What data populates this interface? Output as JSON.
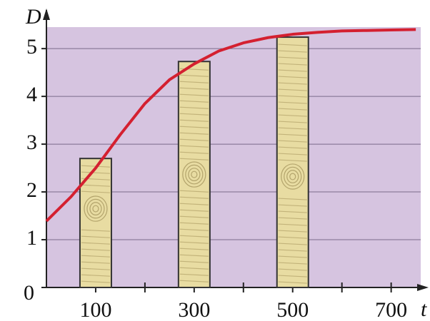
{
  "chart_data": {
    "type": "bar",
    "x_label": "t",
    "y_label": "D",
    "x": [
      100,
      300,
      500
    ],
    "values": [
      2.7,
      4.73,
      5.24
    ],
    "color": "#e8dca2",
    "background": "#d6c4e0",
    "xlim": [
      0,
      760
    ],
    "ylim": [
      0,
      5.45
    ],
    "xticks": [
      100,
      300,
      500,
      700
    ],
    "xminorticks": [
      200,
      400,
      600
    ],
    "yticks": [
      0,
      1,
      2,
      3,
      4,
      5
    ],
    "grid": true,
    "curve": {
      "type": "line",
      "color": "#d42030",
      "x": [
        0,
        50,
        100,
        150,
        200,
        250,
        300,
        350,
        400,
        450,
        500,
        550,
        600,
        650,
        700,
        750
      ],
      "values": [
        1.39,
        1.9,
        2.5,
        3.2,
        3.85,
        4.35,
        4.68,
        4.95,
        5.12,
        5.23,
        5.3,
        5.34,
        5.37,
        5.38,
        5.39,
        5.4
      ]
    }
  }
}
